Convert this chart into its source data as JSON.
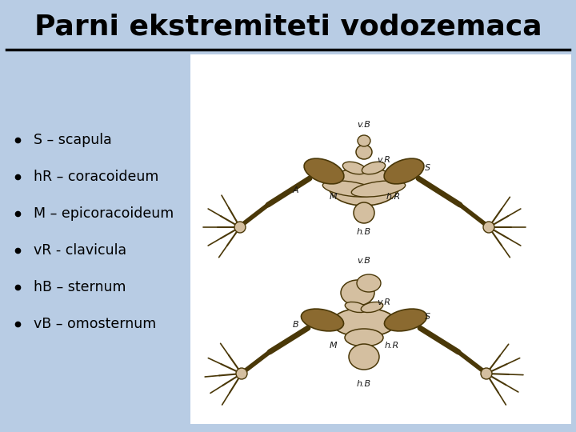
{
  "title": "Parni ekstremiteti vodozemaca",
  "title_fontsize": 26,
  "title_fontweight": "bold",
  "title_color": "#000000",
  "background_color": "#b8cce4",
  "right_panel_color": "#ffffff",
  "bullet_points": [
    "S – scapula",
    "hR – coracoideum",
    "M – epicoracoideum",
    "vR - clavicula",
    "hB – sternum",
    "vB – omosternum"
  ],
  "bullet_fontsize": 12.5,
  "bullet_color": "#000000",
  "separator_color": "#000000",
  "separator_linewidth": 2.5,
  "bone_color_light": "#d4bfa0",
  "bone_color_shaded": "#c8a878",
  "bone_color_dark": "#8b6a30",
  "bone_outline": "#4a3808",
  "label_fontsize": 8.0
}
